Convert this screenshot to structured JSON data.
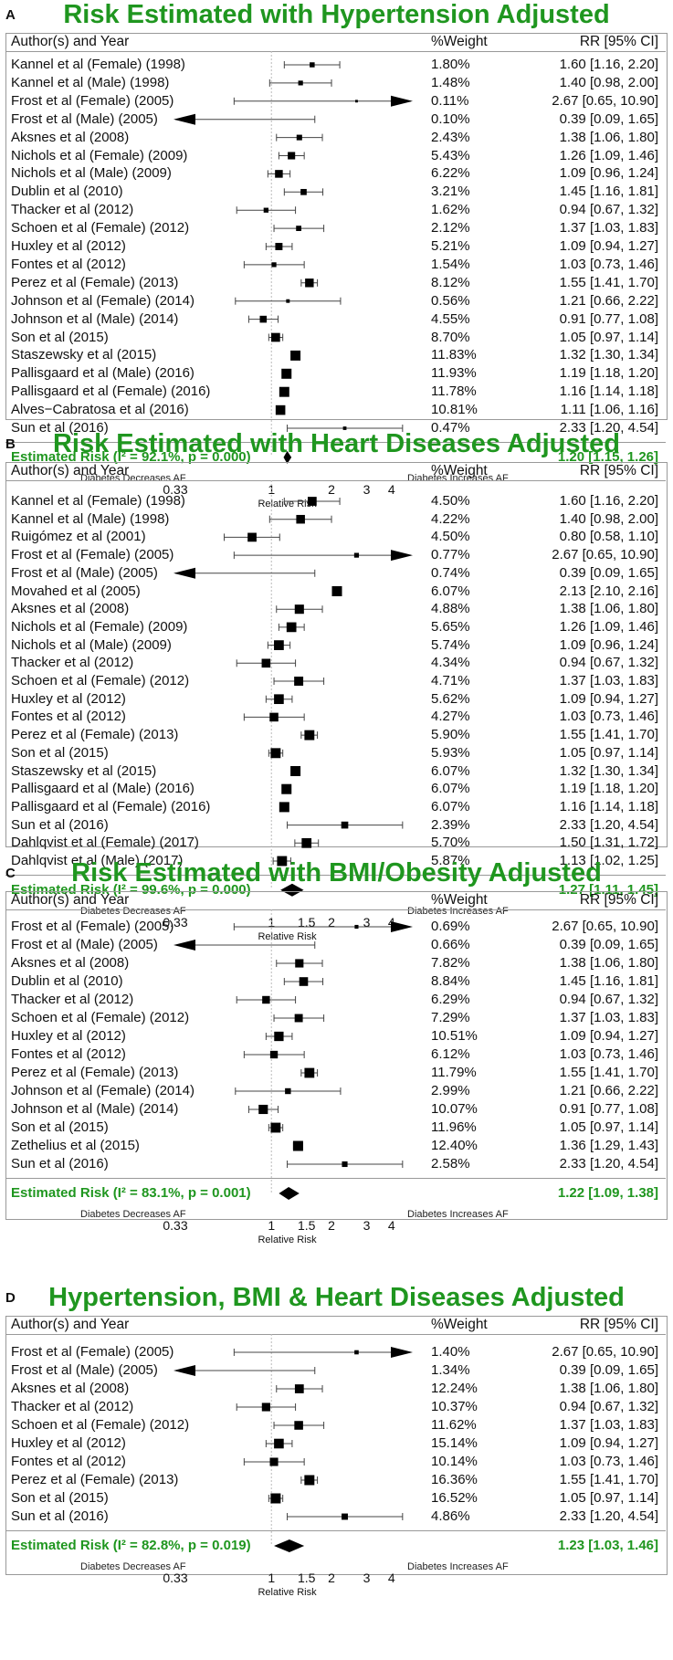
{
  "chart_data": [
    {
      "type": "forest",
      "panel_letter": "A",
      "title": "Risk Estimated with Hypertension Adjusted",
      "col_author": "Author(s) and Year",
      "col_weight": "%Weight",
      "col_rr": "RR [95% CI]",
      "x_scale": "log",
      "xlim": [
        0.33,
        5
      ],
      "reference_line": 1,
      "x_ticks": [
        "0.33",
        "1",
        "2",
        "3",
        "4"
      ],
      "xlabel": "Relative Risk",
      "left_label": "Diabetes Decreases AF",
      "right_label": "Diabetes Increases AF",
      "studies": [
        {
          "author": "Kannel et al (Female) (1998)",
          "weight": "1.80%",
          "rr": 1.6,
          "lo": 1.16,
          "hi": 2.2,
          "rr_text": "1.60 [1.16, 2.20]"
        },
        {
          "author": "Kannel et al (Male) (1998)",
          "weight": "1.48%",
          "rr": 1.4,
          "lo": 0.98,
          "hi": 2.0,
          "rr_text": "1.40 [0.98, 2.00]"
        },
        {
          "author": "Frost et al (Female) (2005)",
          "weight": "0.11%",
          "rr": 2.67,
          "lo": 0.65,
          "hi": 10.9,
          "rr_text": "2.67 [0.65, 10.90]"
        },
        {
          "author": "Frost et al (Male) (2005)",
          "weight": "0.10%",
          "rr": 0.39,
          "lo": 0.09,
          "hi": 1.65,
          "rr_text": "0.39 [0.09, 1.65]"
        },
        {
          "author": "Aksnes et al (2008)",
          "weight": "2.43%",
          "rr": 1.38,
          "lo": 1.06,
          "hi": 1.8,
          "rr_text": "1.38 [1.06, 1.80]"
        },
        {
          "author": "Nichols et al (Female) (2009)",
          "weight": "5.43%",
          "rr": 1.26,
          "lo": 1.09,
          "hi": 1.46,
          "rr_text": "1.26 [1.09, 1.46]"
        },
        {
          "author": "Nichols et al (Male) (2009)",
          "weight": "6.22%",
          "rr": 1.09,
          "lo": 0.96,
          "hi": 1.24,
          "rr_text": "1.09 [0.96, 1.24]"
        },
        {
          "author": "Dublin et al (2010)",
          "weight": "3.21%",
          "rr": 1.45,
          "lo": 1.16,
          "hi": 1.81,
          "rr_text": "1.45 [1.16, 1.81]"
        },
        {
          "author": "Thacker et al (2012)",
          "weight": "1.62%",
          "rr": 0.94,
          "lo": 0.67,
          "hi": 1.32,
          "rr_text": "0.94 [0.67, 1.32]"
        },
        {
          "author": "Schoen et al (Female) (2012)",
          "weight": "2.12%",
          "rr": 1.37,
          "lo": 1.03,
          "hi": 1.83,
          "rr_text": "1.37 [1.03, 1.83]"
        },
        {
          "author": "Huxley et al (2012)",
          "weight": "5.21%",
          "rr": 1.09,
          "lo": 0.94,
          "hi": 1.27,
          "rr_text": "1.09 [0.94, 1.27]"
        },
        {
          "author": "Fontes et al (2012)",
          "weight": "1.54%",
          "rr": 1.03,
          "lo": 0.73,
          "hi": 1.46,
          "rr_text": "1.03 [0.73, 1.46]"
        },
        {
          "author": "Perez et al (Female) (2013)",
          "weight": "8.12%",
          "rr": 1.55,
          "lo": 1.41,
          "hi": 1.7,
          "rr_text": "1.55 [1.41, 1.70]"
        },
        {
          "author": "Johnson et al (Female) (2014)",
          "weight": "0.56%",
          "rr": 1.21,
          "lo": 0.66,
          "hi": 2.22,
          "rr_text": "1.21 [0.66, 2.22]"
        },
        {
          "author": "Johnson et al (Male) (2014)",
          "weight": "4.55%",
          "rr": 0.91,
          "lo": 0.77,
          "hi": 1.08,
          "rr_text": "0.91 [0.77, 1.08]"
        },
        {
          "author": "Son et al (2015)",
          "weight": "8.70%",
          "rr": 1.05,
          "lo": 0.97,
          "hi": 1.14,
          "rr_text": "1.05 [0.97, 1.14]"
        },
        {
          "author": "Staszewsky et al (2015)",
          "weight": "11.83%",
          "rr": 1.32,
          "lo": 1.3,
          "hi": 1.34,
          "rr_text": "1.32 [1.30, 1.34]"
        },
        {
          "author": "Pallisgaard et al (Male) (2016)",
          "weight": "11.93%",
          "rr": 1.19,
          "lo": 1.18,
          "hi": 1.2,
          "rr_text": "1.19 [1.18, 1.20]"
        },
        {
          "author": "Pallisgaard et al (Female) (2016)",
          "weight": "11.78%",
          "rr": 1.16,
          "lo": 1.14,
          "hi": 1.18,
          "rr_text": "1.16 [1.14, 1.18]"
        },
        {
          "author": "Alves−Cabratosa et al (2016)",
          "weight": "10.81%",
          "rr": 1.11,
          "lo": 1.06,
          "hi": 1.16,
          "rr_text": "1.11 [1.06, 1.16]"
        },
        {
          "author": "Sun et al (2016)",
          "weight": "0.47%",
          "rr": 2.33,
          "lo": 1.2,
          "hi": 4.54,
          "rr_text": "2.33 [1.20, 4.54]"
        }
      ],
      "summary": {
        "label": "Estimated Risk (I² = 92.1%, p = 0.000)",
        "rr": 1.2,
        "lo": 1.15,
        "hi": 1.26,
        "rr_text": "1.20 [1.15, 1.26]"
      }
    },
    {
      "type": "forest",
      "panel_letter": "B",
      "title": "Risk Estimated with Heart Diseases Adjusted",
      "col_author": "Author(s) and Year",
      "col_weight": "%Weight",
      "col_rr": "RR [95% CI]",
      "x_scale": "log",
      "xlim": [
        0.33,
        5
      ],
      "reference_line": 1,
      "x_ticks": [
        "0.33",
        "1",
        "1.5",
        "2",
        "3",
        "4"
      ],
      "xlabel": "Relative Risk",
      "left_label": "Diabetes Decreases AF",
      "right_label": "Diabetes Increases AF",
      "studies": [
        {
          "author": "Kannel et al (Female) (1998)",
          "weight": "4.50%",
          "rr": 1.6,
          "lo": 1.16,
          "hi": 2.2,
          "rr_text": "1.60 [1.16, 2.20]"
        },
        {
          "author": "Kannel et al (Male) (1998)",
          "weight": "4.22%",
          "rr": 1.4,
          "lo": 0.98,
          "hi": 2.0,
          "rr_text": "1.40 [0.98, 2.00]"
        },
        {
          "author": "Ruigómez et al (2001)",
          "weight": "4.50%",
          "rr": 0.8,
          "lo": 0.58,
          "hi": 1.1,
          "rr_text": "0.80 [0.58, 1.10]"
        },
        {
          "author": "Frost et al (Female) (2005)",
          "weight": "0.77%",
          "rr": 2.67,
          "lo": 0.65,
          "hi": 10.9,
          "rr_text": "2.67 [0.65, 10.90]"
        },
        {
          "author": "Frost et al (Male) (2005)",
          "weight": "0.74%",
          "rr": 0.39,
          "lo": 0.09,
          "hi": 1.65,
          "rr_text": "0.39 [0.09, 1.65]"
        },
        {
          "author": "Movahed et al (2005)",
          "weight": "6.07%",
          "rr": 2.13,
          "lo": 2.1,
          "hi": 2.16,
          "rr_text": "2.13 [2.10, 2.16]"
        },
        {
          "author": "Aksnes et al (2008)",
          "weight": "4.88%",
          "rr": 1.38,
          "lo": 1.06,
          "hi": 1.8,
          "rr_text": "1.38 [1.06, 1.80]"
        },
        {
          "author": "Nichols et al (Female) (2009)",
          "weight": "5.65%",
          "rr": 1.26,
          "lo": 1.09,
          "hi": 1.46,
          "rr_text": "1.26 [1.09, 1.46]"
        },
        {
          "author": "Nichols et al (Male) (2009)",
          "weight": "5.74%",
          "rr": 1.09,
          "lo": 0.96,
          "hi": 1.24,
          "rr_text": "1.09 [0.96, 1.24]"
        },
        {
          "author": "Thacker et al (2012)",
          "weight": "4.34%",
          "rr": 0.94,
          "lo": 0.67,
          "hi": 1.32,
          "rr_text": "0.94 [0.67, 1.32]"
        },
        {
          "author": "Schoen et al (Female) (2012)",
          "weight": "4.71%",
          "rr": 1.37,
          "lo": 1.03,
          "hi": 1.83,
          "rr_text": "1.37 [1.03, 1.83]"
        },
        {
          "author": "Huxley et al (2012)",
          "weight": "5.62%",
          "rr": 1.09,
          "lo": 0.94,
          "hi": 1.27,
          "rr_text": "1.09 [0.94, 1.27]"
        },
        {
          "author": "Fontes et al (2012)",
          "weight": "4.27%",
          "rr": 1.03,
          "lo": 0.73,
          "hi": 1.46,
          "rr_text": "1.03 [0.73, 1.46]"
        },
        {
          "author": "Perez et al (Female) (2013)",
          "weight": "5.90%",
          "rr": 1.55,
          "lo": 1.41,
          "hi": 1.7,
          "rr_text": "1.55 [1.41, 1.70]"
        },
        {
          "author": "Son et al (2015)",
          "weight": "5.93%",
          "rr": 1.05,
          "lo": 0.97,
          "hi": 1.14,
          "rr_text": "1.05 [0.97, 1.14]"
        },
        {
          "author": "Staszewsky et al (2015)",
          "weight": "6.07%",
          "rr": 1.32,
          "lo": 1.3,
          "hi": 1.34,
          "rr_text": "1.32 [1.30, 1.34]"
        },
        {
          "author": "Pallisgaard et al (Male) (2016)",
          "weight": "6.07%",
          "rr": 1.19,
          "lo": 1.18,
          "hi": 1.2,
          "rr_text": "1.19 [1.18, 1.20]"
        },
        {
          "author": "Pallisgaard et al (Female) (2016)",
          "weight": "6.07%",
          "rr": 1.16,
          "lo": 1.14,
          "hi": 1.18,
          "rr_text": "1.16 [1.14, 1.18]"
        },
        {
          "author": "Sun et al (2016)",
          "weight": "2.39%",
          "rr": 2.33,
          "lo": 1.2,
          "hi": 4.54,
          "rr_text": "2.33 [1.20, 4.54]"
        },
        {
          "author": "Dahlqvist et al (Female) (2017)",
          "weight": "5.70%",
          "rr": 1.5,
          "lo": 1.31,
          "hi": 1.72,
          "rr_text": "1.50 [1.31, 1.72]"
        },
        {
          "author": "Dahlqvist et al (Male) (2017)",
          "weight": "5.87%",
          "rr": 1.13,
          "lo": 1.02,
          "hi": 1.25,
          "rr_text": "1.13 [1.02, 1.25]"
        }
      ],
      "summary": {
        "label": "Estimated Risk (I² = 99.6%, p = 0.000)",
        "rr": 1.27,
        "lo": 1.11,
        "hi": 1.45,
        "rr_text": "1.27 [1.11, 1.45]"
      }
    },
    {
      "type": "forest",
      "panel_letter": "C",
      "title": "Risk Estimated with BMI/Obesity Adjusted",
      "col_author": "Author(s) and Year",
      "col_weight": "%Weight",
      "col_rr": "RR [95% CI]",
      "x_scale": "log",
      "xlim": [
        0.33,
        5
      ],
      "reference_line": 1,
      "x_ticks": [
        "0.33",
        "1",
        "1.5",
        "2",
        "3",
        "4"
      ],
      "xlabel": "Relative Risk",
      "left_label": "Diabetes Decreases AF",
      "right_label": "Diabetes Increases AF",
      "studies": [
        {
          "author": "Frost et al (Female) (2005)",
          "weight": "0.69%",
          "rr": 2.67,
          "lo": 0.65,
          "hi": 10.9,
          "rr_text": "2.67 [0.65, 10.90]"
        },
        {
          "author": "Frost et al (Male) (2005)",
          "weight": "0.66%",
          "rr": 0.39,
          "lo": 0.09,
          "hi": 1.65,
          "rr_text": "0.39 [0.09, 1.65]"
        },
        {
          "author": "Aksnes et al (2008)",
          "weight": "7.82%",
          "rr": 1.38,
          "lo": 1.06,
          "hi": 1.8,
          "rr_text": "1.38 [1.06, 1.80]"
        },
        {
          "author": "Dublin et al (2010)",
          "weight": "8.84%",
          "rr": 1.45,
          "lo": 1.16,
          "hi": 1.81,
          "rr_text": "1.45 [1.16, 1.81]"
        },
        {
          "author": "Thacker et al (2012)",
          "weight": "6.29%",
          "rr": 0.94,
          "lo": 0.67,
          "hi": 1.32,
          "rr_text": "0.94 [0.67, 1.32]"
        },
        {
          "author": "Schoen et al (Female) (2012)",
          "weight": "7.29%",
          "rr": 1.37,
          "lo": 1.03,
          "hi": 1.83,
          "rr_text": "1.37 [1.03, 1.83]"
        },
        {
          "author": "Huxley et al (2012)",
          "weight": "10.51%",
          "rr": 1.09,
          "lo": 0.94,
          "hi": 1.27,
          "rr_text": "1.09 [0.94, 1.27]"
        },
        {
          "author": "Fontes et al (2012)",
          "weight": "6.12%",
          "rr": 1.03,
          "lo": 0.73,
          "hi": 1.46,
          "rr_text": "1.03 [0.73, 1.46]"
        },
        {
          "author": "Perez et al (Female) (2013)",
          "weight": "11.79%",
          "rr": 1.55,
          "lo": 1.41,
          "hi": 1.7,
          "rr_text": "1.55 [1.41, 1.70]"
        },
        {
          "author": "Johnson et al (Female) (2014)",
          "weight": "2.99%",
          "rr": 1.21,
          "lo": 0.66,
          "hi": 2.22,
          "rr_text": "1.21 [0.66, 2.22]"
        },
        {
          "author": "Johnson et al (Male) (2014)",
          "weight": "10.07%",
          "rr": 0.91,
          "lo": 0.77,
          "hi": 1.08,
          "rr_text": "0.91 [0.77, 1.08]"
        },
        {
          "author": "Son et al (2015)",
          "weight": "11.96%",
          "rr": 1.05,
          "lo": 0.97,
          "hi": 1.14,
          "rr_text": "1.05 [0.97, 1.14]"
        },
        {
          "author": "Zethelius et al (2015)",
          "weight": "12.40%",
          "rr": 1.36,
          "lo": 1.29,
          "hi": 1.43,
          "rr_text": "1.36 [1.29, 1.43]"
        },
        {
          "author": "Sun et al (2016)",
          "weight": "2.58%",
          "rr": 2.33,
          "lo": 1.2,
          "hi": 4.54,
          "rr_text": "2.33 [1.20, 4.54]"
        }
      ],
      "summary": {
        "label": "Estimated Risk (I² = 83.1%, p = 0.001)",
        "rr": 1.22,
        "lo": 1.09,
        "hi": 1.38,
        "rr_text": "1.22 [1.09, 1.38]"
      }
    },
    {
      "type": "forest",
      "panel_letter": "D",
      "title": "Hypertension, BMI & Heart Diseases Adjusted",
      "col_author": "Author(s) and Year",
      "col_weight": "%Weight",
      "col_rr": "RR [95% CI]",
      "x_scale": "log",
      "xlim": [
        0.33,
        5
      ],
      "reference_line": 1,
      "x_ticks": [
        "0.33",
        "1",
        "1.5",
        "2",
        "3",
        "4"
      ],
      "xlabel": "Relative Risk",
      "left_label": "Diabetes Decreases AF",
      "right_label": "Diabetes Increases AF",
      "studies": [
        {
          "author": "Frost et al (Female) (2005)",
          "weight": "1.40%",
          "rr": 2.67,
          "lo": 0.65,
          "hi": 10.9,
          "rr_text": "2.67 [0.65, 10.90]"
        },
        {
          "author": "Frost et al (Male) (2005)",
          "weight": "1.34%",
          "rr": 0.39,
          "lo": 0.09,
          "hi": 1.65,
          "rr_text": "0.39 [0.09, 1.65]"
        },
        {
          "author": "Aksnes et al (2008)",
          "weight": "12.24%",
          "rr": 1.38,
          "lo": 1.06,
          "hi": 1.8,
          "rr_text": "1.38 [1.06, 1.80]"
        },
        {
          "author": "Thacker et al (2012)",
          "weight": "10.37%",
          "rr": 0.94,
          "lo": 0.67,
          "hi": 1.32,
          "rr_text": "0.94 [0.67, 1.32]"
        },
        {
          "author": "Schoen et al (Female) (2012)",
          "weight": "11.62%",
          "rr": 1.37,
          "lo": 1.03,
          "hi": 1.83,
          "rr_text": "1.37 [1.03, 1.83]"
        },
        {
          "author": "Huxley et al (2012)",
          "weight": "15.14%",
          "rr": 1.09,
          "lo": 0.94,
          "hi": 1.27,
          "rr_text": "1.09 [0.94, 1.27]"
        },
        {
          "author": "Fontes et al (2012)",
          "weight": "10.14%",
          "rr": 1.03,
          "lo": 0.73,
          "hi": 1.46,
          "rr_text": "1.03 [0.73, 1.46]"
        },
        {
          "author": "Perez et al (Female) (2013)",
          "weight": "16.36%",
          "rr": 1.55,
          "lo": 1.41,
          "hi": 1.7,
          "rr_text": "1.55 [1.41, 1.70]"
        },
        {
          "author": "Son et al (2015)",
          "weight": "16.52%",
          "rr": 1.05,
          "lo": 0.97,
          "hi": 1.14,
          "rr_text": "1.05 [0.97, 1.14]"
        },
        {
          "author": "Sun et al (2016)",
          "weight": "4.86%",
          "rr": 2.33,
          "lo": 1.2,
          "hi": 4.54,
          "rr_text": "2.33 [1.20, 4.54]"
        }
      ],
      "summary": {
        "label": "Estimated Risk (I² = 82.8%, p = 0.019)",
        "rr": 1.23,
        "lo": 1.03,
        "hi": 1.46,
        "rr_text": "1.23 [1.03, 1.46]"
      }
    }
  ],
  "colors": {
    "title": "#1f961f",
    "summary": "#1f961f",
    "marker": "#000000",
    "ci_line": "#444444",
    "reference": "#bbbbbb"
  }
}
